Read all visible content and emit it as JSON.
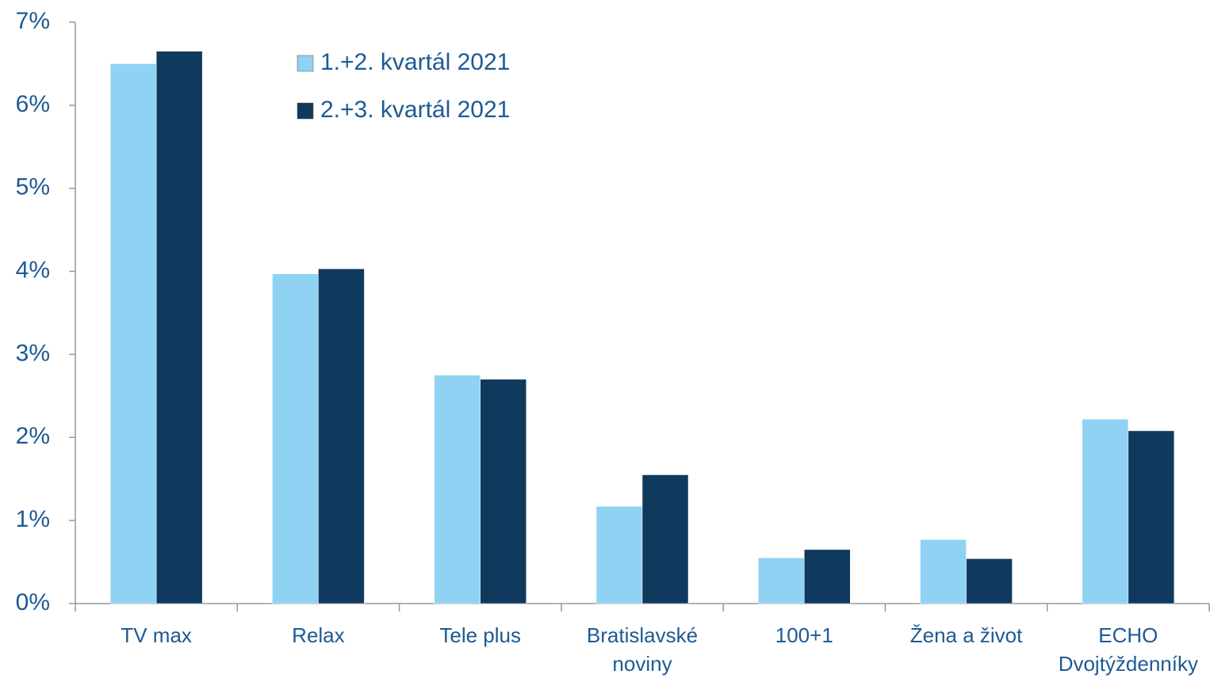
{
  "chart_data": {
    "type": "bar",
    "categories": [
      "TV max",
      "Relax",
      "Tele plus",
      "Bratislavské\nnoviny",
      "100+1",
      "Žena a život",
      "ECHO\nDvojtýždenníky"
    ],
    "series": [
      {
        "name": "1.+2. kvartál 2021",
        "color": "#8fd2f4",
        "values": [
          6.5,
          3.97,
          2.75,
          1.17,
          0.55,
          0.77,
          2.22
        ]
      },
      {
        "name": "2.+3. kvartál 2021",
        "color": "#0f3a5e",
        "values": [
          6.65,
          4.03,
          2.7,
          1.55,
          0.65,
          0.54,
          2.08
        ]
      }
    ],
    "ylim": [
      0,
      7
    ],
    "yticks": [
      {
        "value": 0,
        "label": "0%"
      },
      {
        "value": 1,
        "label": "1%"
      },
      {
        "value": 2,
        "label": "2%"
      },
      {
        "value": 3,
        "label": "3%"
      },
      {
        "value": 4,
        "label": "4%"
      },
      {
        "value": 5,
        "label": "5%"
      },
      {
        "value": 6,
        "label": "6%"
      },
      {
        "value": 7,
        "label": "7%"
      }
    ],
    "legend": "top-left"
  }
}
